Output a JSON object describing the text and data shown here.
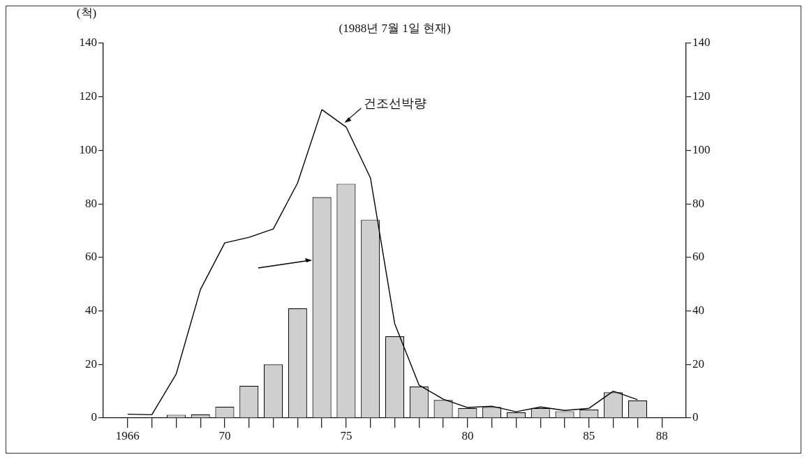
{
  "chart_data": {
    "type": "bar",
    "title": "(1988년 7월 1일 현재)",
    "ylabel": "(척)",
    "x": [
      1968,
      1969,
      1970,
      1971,
      1972,
      1973,
      1974,
      1975,
      1976,
      1977,
      1978,
      1979,
      1980,
      1981,
      1982,
      1983,
      1984,
      1985,
      1986,
      1987
    ],
    "series": [
      {
        "color": "#cfcfcf",
        "values": [
          1.2,
          1.3,
          4.2,
          12,
          20,
          41,
          82.5,
          87.5,
          74,
          30.5,
          11.7,
          6.7,
          3.7,
          4.1,
          2.1,
          3.7,
          2.5,
          3.1,
          9.6,
          6.5
        ]
      },
      {
        "type": "line",
        "color": "#000000",
        "x": [
          1966,
          1967,
          1968,
          1969,
          1970,
          1971,
          1972,
          1973,
          1974,
          1975,
          1976,
          1977,
          1978,
          1979,
          1980,
          1981,
          1982,
          1983,
          1984,
          1985,
          1986,
          1987
        ],
        "values": [
          1.4,
          1.2,
          16.4,
          48,
          65.4,
          67.5,
          70.6,
          87.8,
          115.2,
          108.7,
          89.7,
          35.2,
          12.3,
          7,
          3.9,
          4.4,
          2.3,
          4.1,
          2.8,
          3.6,
          10,
          6.8
        ]
      }
    ],
    "xlim": [
      1965,
      1989
    ],
    "xticks": [
      1966,
      {
        "value": 1967,
        "label": null
      },
      {
        "value": 1968,
        "label": null
      },
      {
        "value": 1969,
        "label": null
      },
      {
        "value": 1970,
        "label": "70"
      },
      {
        "value": 1971,
        "label": null
      },
      {
        "value": 1972,
        "label": null
      },
      {
        "value": 1973,
        "label": null
      },
      {
        "value": 1974,
        "label": null
      },
      {
        "value": 1975,
        "label": "75"
      },
      {
        "value": 1976,
        "label": null
      },
      {
        "value": 1977,
        "label": null
      },
      {
        "value": 1978,
        "label": null
      },
      {
        "value": 1979,
        "label": null
      },
      {
        "value": 1980,
        "label": "80"
      },
      {
        "value": 1981,
        "label": null
      },
      {
        "value": 1982,
        "label": null
      },
      {
        "value": 1983,
        "label": null
      },
      {
        "value": 1984,
        "label": null
      },
      {
        "value": 1985,
        "label": "85"
      },
      {
        "value": 1986,
        "label": null
      },
      {
        "value": 1987,
        "label": null
      },
      {
        "value": 1988,
        "label": "88"
      }
    ],
    "ylim": [
      0,
      140
    ],
    "yticks": [
      0,
      20,
      40,
      60,
      80,
      100,
      120,
      140
    ],
    "y2lim": [
      0,
      140
    ],
    "y2ticks": [
      0,
      20,
      40,
      60,
      80,
      100,
      120,
      140
    ],
    "annotations": [
      {
        "text": "건조선박량",
        "x": 1974.9,
        "y": 110
      }
    ],
    "legend": false,
    "grid": false,
    "marker": "none",
    "line_style": "solid"
  }
}
